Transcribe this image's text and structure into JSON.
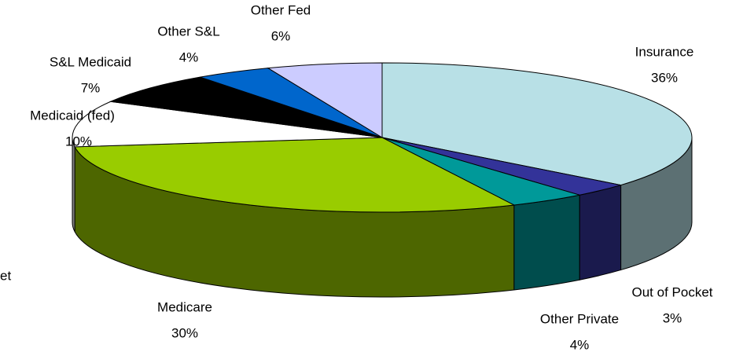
{
  "chart_data": {
    "type": "pie",
    "categories": [
      "Insurance",
      "Out of Pocket",
      "Other Private",
      "Medicare",
      "Medicaid (fed)",
      "S&L Medicaid",
      "Other S&L",
      "Other Fed"
    ],
    "values": [
      36,
      3,
      4,
      30,
      10,
      7,
      4,
      6
    ],
    "value_labels": [
      "36%",
      "3%",
      "4%",
      "30%",
      "10%",
      "7%",
      "4%",
      "6%"
    ],
    "colors": [
      "#b8e0e6",
      "#333399",
      "#009999",
      "#99cc00",
      "#ffffff",
      "#000000",
      "#0066cc",
      "#ccccff"
    ],
    "annotations": [
      "et"
    ]
  }
}
